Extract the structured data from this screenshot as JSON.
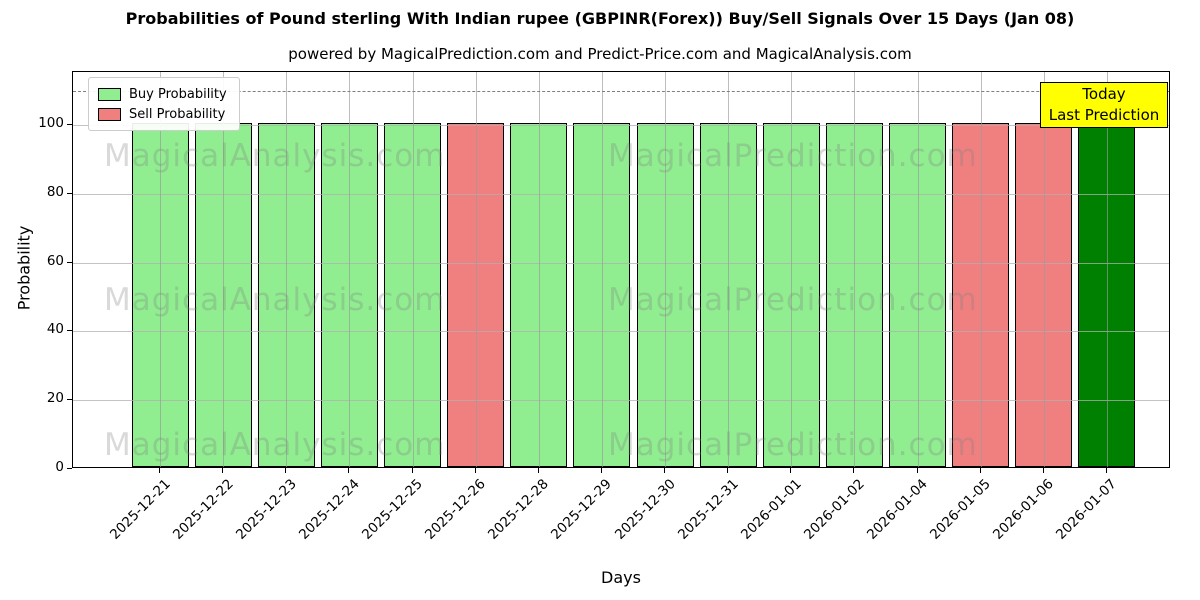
{
  "figure": {
    "title": "Probabilities of Pound sterling With Indian rupee (GBPINR(Forex)) Buy/Sell Signals Over 15 Days (Jan 08)",
    "subtitle": "powered by MagicalPrediction.com and Predict-Price.com and MagicalAnalysis.com"
  },
  "legend": {
    "items": [
      {
        "label": "Buy Probability",
        "color": "#90EE90"
      },
      {
        "label": "Sell Probability",
        "color": "#F08080"
      }
    ]
  },
  "annotation": {
    "line1": "Today",
    "line2": "Last Prediction",
    "bg_color": "#FFFF00"
  },
  "watermarks": {
    "left_text": "MagicalAnalysis.com",
    "right_text": "MagicalPrediction.com"
  },
  "chart_data": {
    "type": "bar",
    "title": "Probabilities of Pound sterling With Indian rupee (GBPINR(Forex)) Buy/Sell Signals Over 15 Days (Jan 08)",
    "xlabel": "Days",
    "ylabel": "Probability",
    "categories": [
      "2025-12-21",
      "2025-12-22",
      "2025-12-23",
      "2025-12-24",
      "2025-12-25",
      "2025-12-26",
      "2025-12-28",
      "2025-12-29",
      "2025-12-30",
      "2025-12-31",
      "2026-01-01",
      "2026-01-02",
      "2026-01-04",
      "2026-01-05",
      "2026-01-06",
      "2026-01-07"
    ],
    "values": [
      100,
      100,
      100,
      100,
      100,
      100,
      100,
      100,
      100,
      100,
      100,
      100,
      100,
      100,
      100,
      100
    ],
    "series_membership": [
      "buy",
      "buy",
      "buy",
      "buy",
      "buy",
      "sell",
      "buy",
      "buy",
      "buy",
      "buy",
      "buy",
      "buy",
      "buy",
      "sell",
      "sell",
      "last_prediction"
    ],
    "bar_colors": [
      "#90EE90",
      "#90EE90",
      "#90EE90",
      "#90EE90",
      "#90EE90",
      "#F08080",
      "#90EE90",
      "#90EE90",
      "#90EE90",
      "#90EE90",
      "#90EE90",
      "#90EE90",
      "#90EE90",
      "#F08080",
      "#F08080",
      "#008000"
    ],
    "yticks": [
      0,
      20,
      40,
      60,
      80,
      100
    ],
    "ylim": [
      0,
      115.4
    ],
    "dashed_line_y": 110,
    "grid": true,
    "legend_position": "upper left",
    "colors": {
      "buy": "#90EE90",
      "sell": "#F08080",
      "last_prediction": "#008000",
      "grid": "#b0b0b0",
      "dashed_line": "#7f7f7f"
    }
  }
}
